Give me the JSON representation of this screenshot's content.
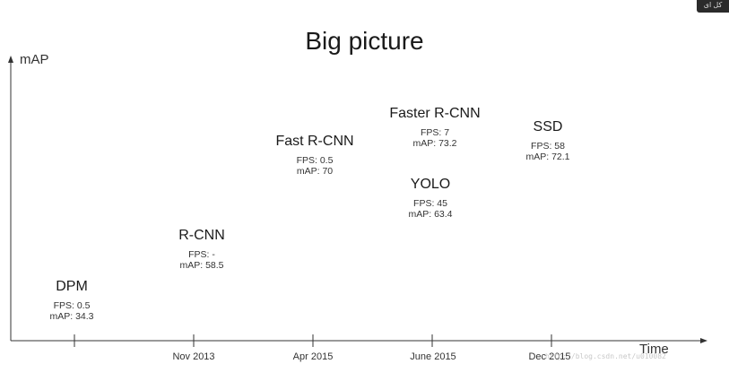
{
  "title": "Big picture",
  "corner_badge": "کل ای",
  "watermark": "http://blog.csdn.net/u010082",
  "axes": {
    "ylabel": "mAP",
    "xlabel": "Time",
    "axis_color": "#333333"
  },
  "ticks": [
    "Nov 2013",
    "Apr 2015",
    "June 2015",
    "Dec 2015"
  ],
  "models": [
    {
      "name": "DPM",
      "fps": "FPS: 0.5",
      "map": "mAP: 34.3"
    },
    {
      "name": "R-CNN",
      "fps": "FPS: -",
      "map": "mAP: 58.5"
    },
    {
      "name": "Fast R-CNN",
      "fps": "FPS: 0.5",
      "map": "mAP: 70"
    },
    {
      "name": "Faster R-CNN",
      "fps": "FPS: 7",
      "map": "mAP: 73.2"
    },
    {
      "name": "YOLO",
      "fps": "FPS: 45",
      "map": "mAP: 63.4"
    },
    {
      "name": "SSD",
      "fps": "FPS: 58",
      "map": "mAP: 72.1"
    }
  ]
}
